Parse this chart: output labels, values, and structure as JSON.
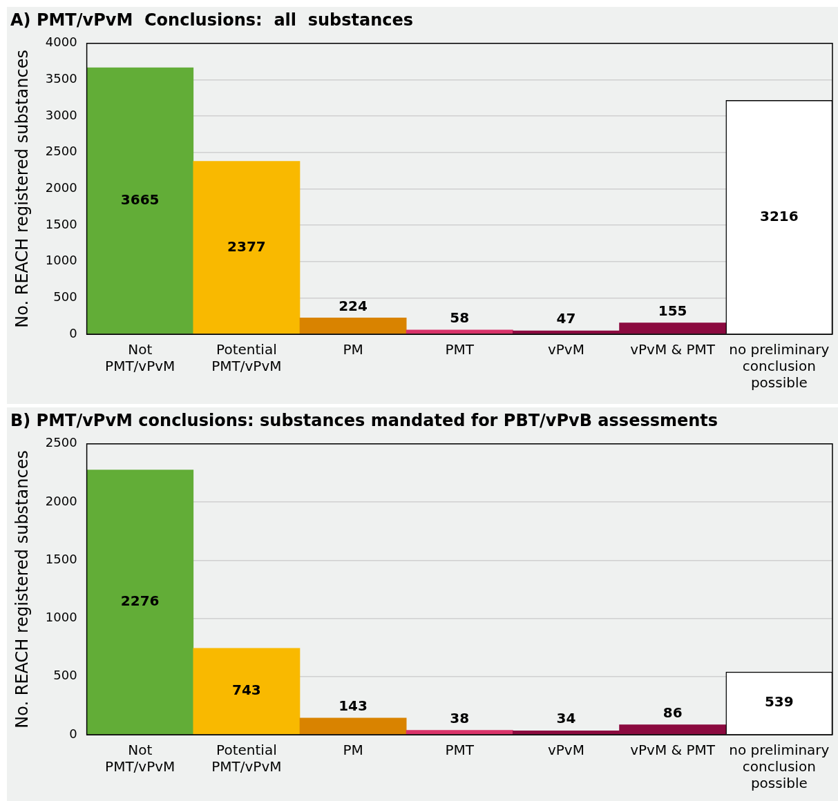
{
  "chart_data": [
    {
      "type": "bar",
      "title": "A) PMT/vPvM  Conclusions:  all  substances",
      "ylabel": "No. REACH registered substances",
      "categories": [
        "Not\nPMT/vPvM",
        "Potential\nPMT/vPvM",
        "PM",
        "PMT",
        "vPvM",
        "vPvM & PMT",
        "no preliminary\nconclusion\npossible"
      ],
      "values": [
        3665,
        2377,
        224,
        58,
        47,
        155,
        3216
      ],
      "colors": [
        "#62ad37",
        "#f9b900",
        "#d98300",
        "#d9336a",
        "#8b0a3f",
        "#8b0a3f",
        "#ffffff"
      ],
      "ylim": [
        0,
        4000
      ],
      "yticks": [
        0,
        500,
        1000,
        1500,
        2000,
        2500,
        3000,
        3500,
        4000
      ],
      "grid": "y",
      "data_labels": true
    },
    {
      "type": "bar",
      "title": "B) PMT/vPvM conclusions: substances mandated for PBT/vPvB assessments",
      "ylabel": "No. REACH registered substances",
      "categories": [
        "Not\nPMT/vPvM",
        "Potential\nPMT/vPvM",
        "PM",
        "PMT",
        "vPvM",
        "vPvM & PMT",
        "no preliminary\nconclusion\npossible"
      ],
      "values": [
        2276,
        743,
        143,
        38,
        34,
        86,
        539
      ],
      "colors": [
        "#62ad37",
        "#f9b900",
        "#d98300",
        "#d9336a",
        "#8b0a3f",
        "#8b0a3f",
        "#ffffff"
      ],
      "ylim": [
        0,
        2500
      ],
      "yticks": [
        0,
        500,
        1000,
        1500,
        2000,
        2500
      ],
      "grid": "y",
      "data_labels": true
    }
  ]
}
